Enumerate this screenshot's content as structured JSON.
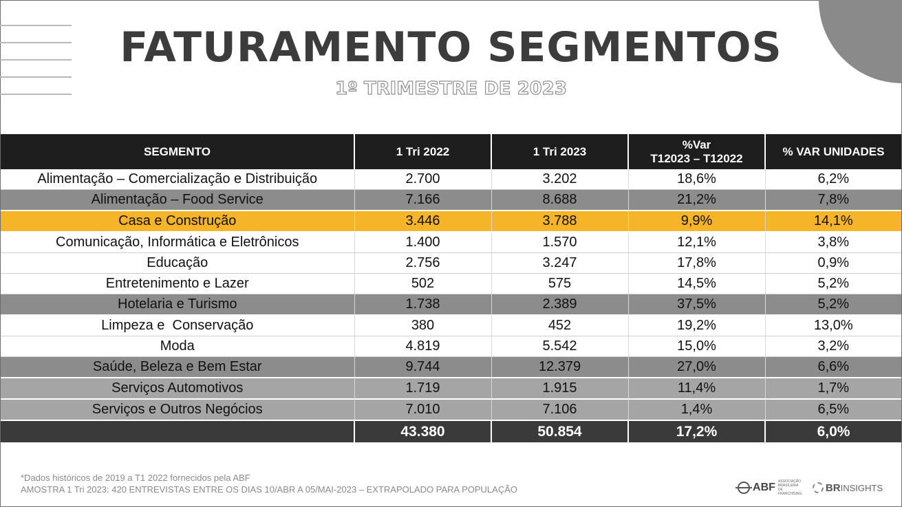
{
  "header": {
    "title": "FATURAMENTO SEGMENTOS",
    "subtitle": "1º TRIMESTRE DE 2023"
  },
  "table": {
    "columns": [
      "SEGMENTO",
      "1 Tri 2022",
      "1 Tri 2023",
      "%Var",
      "T12023 – T12022",
      "% VAR UNIDADES"
    ],
    "rows": [
      {
        "segment": "Alimentação – Comercialização e Distribuição",
        "t2022": "2.700",
        "t2023": "3.202",
        "var": "18,6%",
        "var_units": "6,2%"
      },
      {
        "segment": "Alimentação – Food Service",
        "t2022": "7.166",
        "t2023": "8.688",
        "var": "21,2%",
        "var_units": "7,8%"
      },
      {
        "segment": "Casa e Construção",
        "t2022": "3.446",
        "t2023": "3.788",
        "var": "9,9%",
        "var_units": "14,1%"
      },
      {
        "segment": "Comunicação, Informática e Eletrônicos",
        "t2022": "1.400",
        "t2023": "1.570",
        "var": "12,1%",
        "var_units": "3,8%"
      },
      {
        "segment": "Educação",
        "t2022": "2.756",
        "t2023": "3.247",
        "var": "17,8%",
        "var_units": "0,9%"
      },
      {
        "segment": "Entretenimento e Lazer",
        "t2022": "502",
        "t2023": "575",
        "var": "14,5%",
        "var_units": "5,2%"
      },
      {
        "segment": "Hotelaria e Turismo",
        "t2022": "1.738",
        "t2023": "2.389",
        "var": "37,5%",
        "var_units": "5,2%"
      },
      {
        "segment": "Limpeza e  Conservação",
        "t2022": "380",
        "t2023": "452",
        "var": "19,2%",
        "var_units": "13,0%"
      },
      {
        "segment": "Moda",
        "t2022": "4.819",
        "t2023": "5.542",
        "var": "15,0%",
        "var_units": "3,2%"
      },
      {
        "segment": "Saúde, Beleza e Bem Estar",
        "t2022": "9.744",
        "t2023": "12.379",
        "var": "27,0%",
        "var_units": "6,6%"
      },
      {
        "segment": "Serviços Automotivos",
        "t2022": "1.719",
        "t2023": "1.915",
        "var": "11,4%",
        "var_units": "1,7%"
      },
      {
        "segment": "Serviços e Outros Negócios",
        "t2022": "7.010",
        "t2023": "7.106",
        "var": "1,4%",
        "var_units": "6,5%"
      }
    ],
    "total": {
      "t2022": "43.380",
      "t2023": "50.854",
      "var": "17,2%",
      "var_units": "6,0%"
    }
  },
  "footer": {
    "note1": "*Dados históricos de 2019 a T1 2022 fornecidos pela ABF",
    "note2": "AMOSTRA 1 Tri 2023: 420 ENTREVISTAS ENTRE OS DIAS 10/ABR A 05/MAI-2023 – EXTRAPOLADO PARA POPULAÇÃO"
  },
  "logos": {
    "abf": "ABF",
    "abf_small": "ASSOCIAÇÃO BRASILEIRA DE FRANCHISING",
    "br": "BR",
    "insights": "INSIGHTS"
  },
  "colors": {
    "header_bg": "#1e1e1e",
    "dark_row": "#8c8c8c",
    "light_row": "#a5a5a5",
    "highlight": "#f6b428",
    "total_bg": "#3a3a3a"
  }
}
